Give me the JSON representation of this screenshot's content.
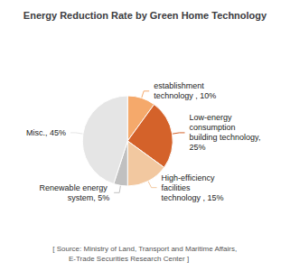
{
  "chart_data": {
    "type": "pie",
    "title": "Energy Reduction Rate by Green Home Technology",
    "categories": [
      "establishment technology , 10%",
      "Low-energy consumption\nbuilding technology, 25%",
      "High-efficiency facilities\ntechnology , 15%",
      "Renewable energy system, 5%",
      "Misc., 45%"
    ],
    "values": [
      10,
      25,
      15,
      5,
      45
    ],
    "colors": [
      "#F5A96B",
      "#D4622A",
      "#F2C8A0",
      "#C0C0C0",
      "#E5E5E5"
    ],
    "annotations": [
      "[ Source: Ministry of Land, Transport and Maritime Affairs,\n        E-Trade Securities Research Center ]"
    ]
  }
}
